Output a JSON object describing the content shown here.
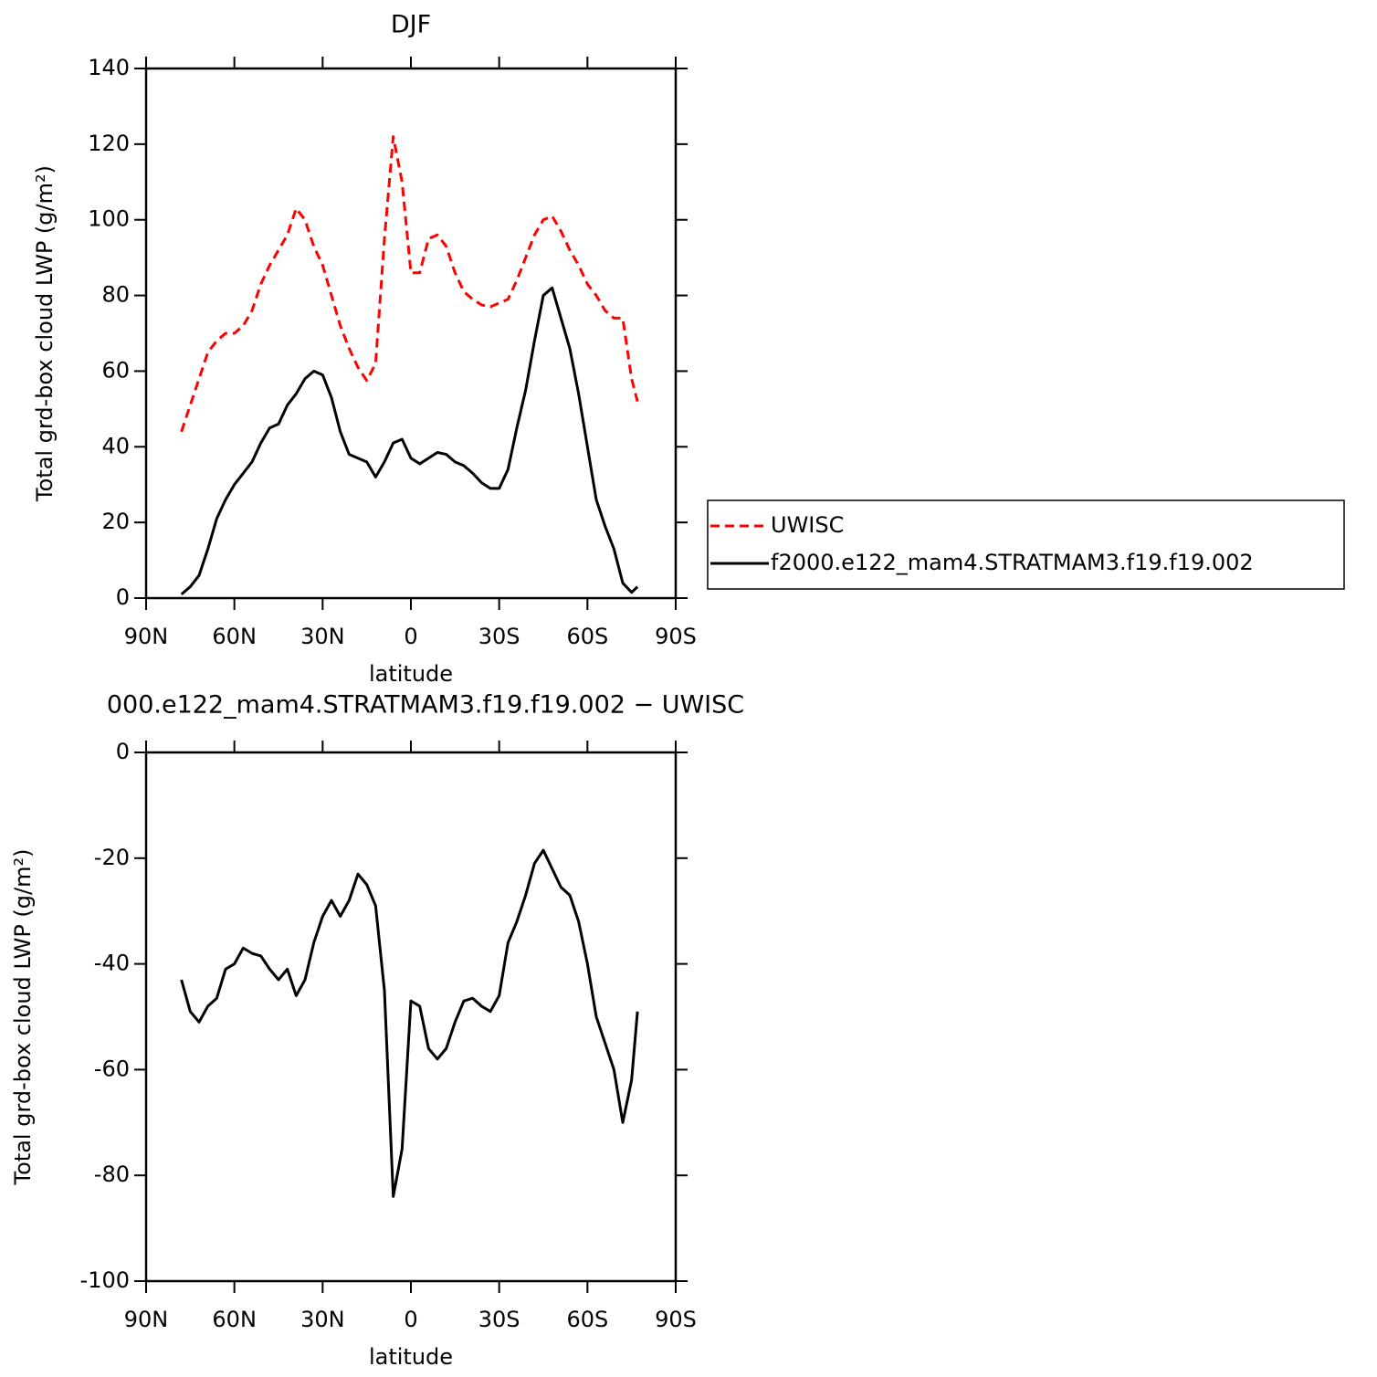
{
  "chart_data": [
    {
      "type": "line",
      "title": "DJF",
      "x_label": "latitude",
      "y_label": "Total grd-box cloud LWP (g/m²)",
      "x": [
        78,
        75,
        72,
        69,
        66,
        63,
        60,
        57,
        54,
        51,
        48,
        45,
        42,
        39,
        36,
        33,
        30,
        27,
        24,
        21,
        18,
        15,
        12,
        9,
        6,
        3,
        0,
        -3,
        -6,
        -9,
        -12,
        -15,
        -18,
        -21,
        -24,
        -27,
        -30,
        -33,
        -36,
        -39,
        -42,
        -45,
        -48,
        -51,
        -54,
        -57,
        -60,
        -63,
        -66,
        -69,
        -72,
        -75,
        -77
      ],
      "series": [
        {
          "name": "UWISC",
          "color": "#ff0000",
          "line_style": "dashed",
          "values": [
            44,
            51,
            58,
            65,
            68,
            70,
            70,
            72,
            76,
            83,
            88,
            92,
            96,
            103,
            100,
            93,
            88,
            80,
            72,
            66,
            61,
            57.5,
            62,
            95,
            122,
            110,
            86,
            86,
            95,
            96,
            93,
            86,
            81,
            79,
            77.5,
            77,
            78,
            79,
            84,
            90,
            96,
            100,
            101,
            97,
            92,
            88,
            83,
            80,
            76,
            74,
            74,
            58,
            52
          ]
        },
        {
          "name": "f2000.e122_mam4.STRATMAM3.f19.f19.002",
          "color": "#000000",
          "line_style": "solid",
          "values": [
            1,
            3,
            6,
            13,
            21,
            26,
            30,
            33,
            36,
            41,
            45,
            46,
            51,
            54,
            58,
            60,
            59,
            53,
            44,
            38,
            37,
            36,
            32,
            36,
            41,
            42,
            37,
            35.5,
            37,
            38.5,
            38,
            36,
            35,
            33,
            30.5,
            29,
            29,
            34,
            45,
            55,
            68,
            80,
            82,
            74,
            66,
            54,
            40,
            26,
            19,
            13,
            4,
            1.5,
            3
          ]
        }
      ],
      "xlim": [
        90,
        -90
      ],
      "xticks": [
        {
          "value": 90,
          "label": "90N"
        },
        {
          "value": 60,
          "label": "60N"
        },
        {
          "value": 30,
          "label": "30N"
        },
        0,
        {
          "value": -30,
          "label": "30S"
        },
        {
          "value": -60,
          "label": "60S"
        },
        {
          "value": -90,
          "label": "90S"
        }
      ],
      "ylim": [
        0,
        140
      ],
      "yticks": [
        0,
        20,
        40,
        60,
        80,
        100,
        120,
        140
      ],
      "legend": "right"
    },
    {
      "type": "line",
      "title": "000.e122_mam4.STRATMAM3.f19.f19.002 − UWISC",
      "x_label": "latitude",
      "y_label": "Total grd-box cloud LWP (g/m²)",
      "x": [
        78,
        75,
        72,
        69,
        66,
        63,
        60,
        57,
        54,
        51,
        48,
        45,
        42,
        39,
        36,
        33,
        30,
        27,
        24,
        21,
        18,
        15,
        12,
        9,
        6,
        3,
        0,
        -3,
        -6,
        -9,
        -12,
        -15,
        -18,
        -21,
        -24,
        -27,
        -30,
        -33,
        -36,
        -39,
        -42,
        -45,
        -48,
        -51,
        -54,
        -57,
        -60,
        -63,
        -66,
        -69,
        -72,
        -75,
        -77
      ],
      "series": [
        {
          "color": "#000000",
          "line_style": "solid",
          "values": [
            -43,
            -49,
            -51,
            -48,
            -46.5,
            -41,
            -40,
            -37,
            -38,
            -38.5,
            -41,
            -43,
            -41,
            -46,
            -43,
            -36,
            -31,
            -28,
            -31,
            -28,
            -23,
            -25,
            -29,
            -45,
            -84,
            -75,
            -47,
            -48,
            -56,
            -58,
            -56,
            -51,
            -47,
            -46.5,
            -48,
            -49,
            -46,
            -36,
            -32,
            -27,
            -21,
            -18.5,
            -22,
            -25.5,
            -27,
            -32,
            -40,
            -50,
            -55,
            -60,
            -70,
            -62,
            -49
          ]
        }
      ],
      "xlim": [
        90,
        -90
      ],
      "xticks": [
        {
          "value": 90,
          "label": "90N"
        },
        {
          "value": 60,
          "label": "60N"
        },
        {
          "value": 30,
          "label": "30N"
        },
        0,
        {
          "value": -30,
          "label": "30S"
        },
        {
          "value": -60,
          "label": "60S"
        },
        {
          "value": -90,
          "label": "90S"
        }
      ],
      "ylim": [
        -100,
        0
      ],
      "yticks": [
        -100,
        -80,
        -60,
        -40,
        -20,
        0
      ]
    }
  ]
}
